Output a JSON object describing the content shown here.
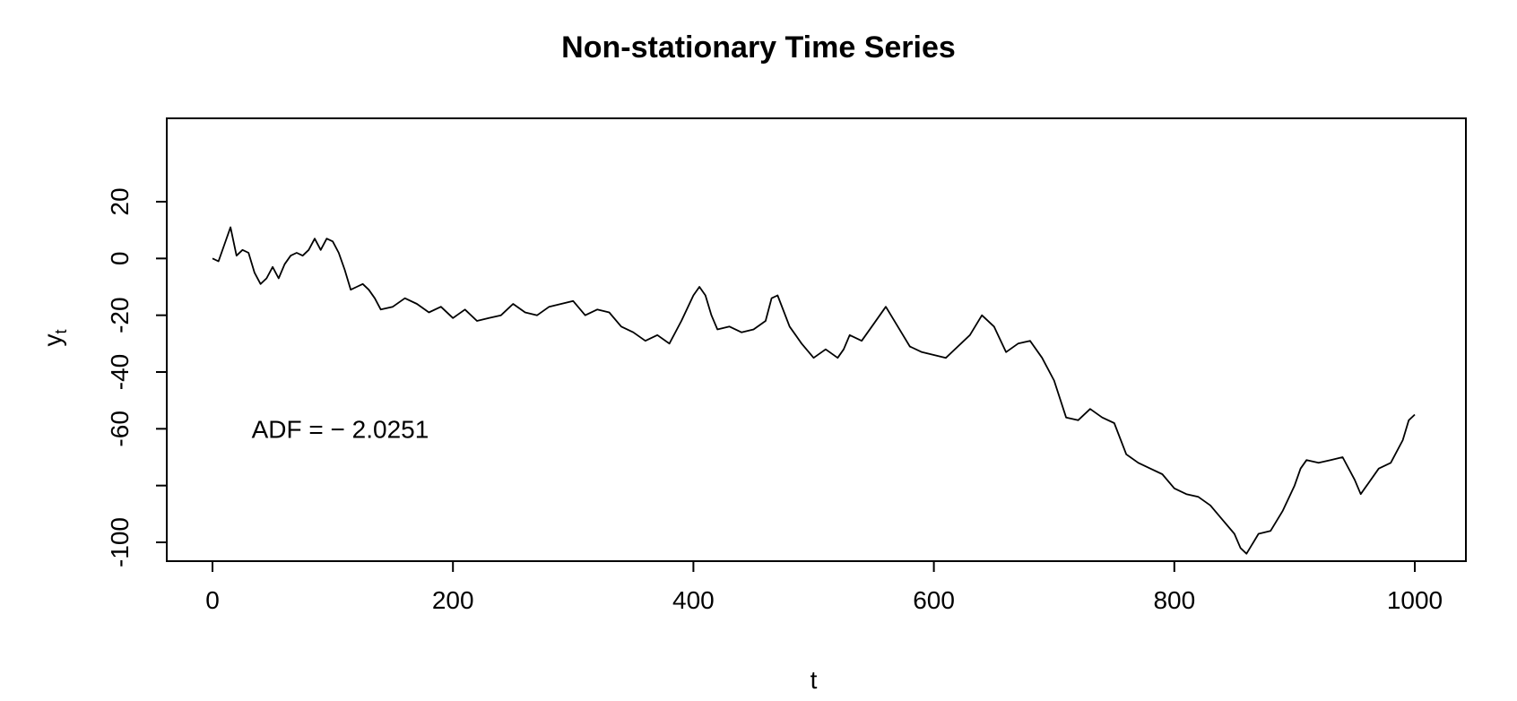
{
  "chart_data": {
    "type": "line",
    "title": "Non-stationary Time Series",
    "xlabel": "t",
    "ylabel_main": "y",
    "ylabel_sub": "t",
    "xlim": [
      0,
      1000
    ],
    "ylim": [
      -105,
      25
    ],
    "x_ticks": [
      0,
      200,
      400,
      600,
      800,
      1000
    ],
    "x_tick_labels": [
      "0",
      "200",
      "400",
      "600",
      "800",
      "1000"
    ],
    "y_ticks": [
      20,
      0,
      -20,
      -40,
      -60,
      -80,
      -100
    ],
    "y_tick_labels": [
      "20",
      "0",
      "-20",
      "-40",
      "-60",
      "",
      "-100"
    ],
    "annotation": {
      "text": "ADF = − 2.0251",
      "x": 40,
      "y": -60
    },
    "grid": false,
    "line_color": "#000000",
    "series": [
      {
        "x": [
          0,
          5,
          10,
          15,
          20,
          25,
          30,
          35,
          40,
          45,
          50,
          55,
          60,
          65,
          70,
          75,
          80,
          85,
          90,
          95,
          100,
          105,
          110,
          115,
          120,
          125,
          130,
          135,
          140,
          150,
          160,
          170,
          180,
          190,
          200,
          210,
          220,
          230,
          240,
          250,
          260,
          270,
          280,
          290,
          300,
          310,
          320,
          330,
          340,
          350,
          360,
          370,
          380,
          390,
          400,
          405,
          410,
          415,
          420,
          430,
          440,
          450,
          460,
          465,
          470,
          480,
          490,
          500,
          510,
          520,
          525,
          530,
          540,
          550,
          560,
          570,
          580,
          590,
          600,
          610,
          620,
          630,
          640,
          650,
          660,
          670,
          680,
          690,
          700,
          710,
          720,
          730,
          740,
          750,
          760,
          770,
          780,
          790,
          800,
          810,
          820,
          830,
          840,
          850,
          855,
          860,
          870,
          880,
          890,
          900,
          905,
          910,
          920,
          930,
          940,
          950,
          955,
          960,
          970,
          980,
          990,
          995,
          1000
        ],
        "values": [
          0,
          -1,
          5,
          11,
          1,
          3,
          2,
          -5,
          -9,
          -7,
          -3,
          -7,
          -2,
          1,
          2,
          1,
          3,
          7,
          3,
          7,
          6,
          2,
          -4,
          -11,
          -10,
          -9,
          -11,
          -14,
          -18,
          -17,
          -14,
          -16,
          -19,
          -17,
          -21,
          -18,
          -22,
          -21,
          -20,
          -16,
          -19,
          -20,
          -17,
          -16,
          -15,
          -20,
          -18,
          -19,
          -24,
          -26,
          -29,
          -27,
          -30,
          -22,
          -13,
          -10,
          -13,
          -20,
          -25,
          -24,
          -26,
          -25,
          -22,
          -14,
          -13,
          -24,
          -30,
          -35,
          -32,
          -35,
          -32,
          -27,
          -29,
          -23,
          -17,
          -24,
          -31,
          -33,
          -34,
          -35,
          -31,
          -27,
          -20,
          -24,
          -33,
          -30,
          -29,
          -35,
          -43,
          -56,
          -57,
          -53,
          -56,
          -58,
          -69,
          -72,
          -74,
          -76,
          -81,
          -83,
          -84,
          -87,
          -92,
          -97,
          -102,
          -104,
          -97,
          -96,
          -89,
          -80,
          -74,
          -71,
          -72,
          -71,
          -70,
          -78,
          -83,
          -80,
          -74,
          -72,
          -64,
          -57,
          -55
        ]
      }
    ]
  }
}
